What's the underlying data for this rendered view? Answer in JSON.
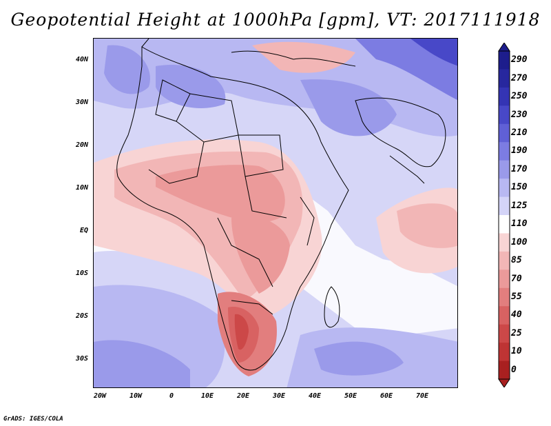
{
  "title": "Geopotential Height at 1000hPa [gpm], VT: 2017111918",
  "y_axis_labels": [
    "40N",
    "30N",
    "20N",
    "10N",
    "EQ",
    "10S",
    "20S",
    "30S"
  ],
  "x_axis_labels": [
    "20W",
    "10W",
    "0",
    "10E",
    "20E",
    "30E",
    "40E",
    "50E",
    "60E",
    "70E"
  ],
  "colorbar": {
    "labels": [
      "290",
      "270",
      "250",
      "230",
      "210",
      "190",
      "170",
      "150",
      "125",
      "110",
      "100",
      "85",
      "70",
      "55",
      "40",
      "25",
      "10",
      "0"
    ],
    "colors_top_to_bottom": [
      "#1d1d8c",
      "#27279e",
      "#3434b4",
      "#4848c8",
      "#6060d6",
      "#7c7ce2",
      "#9a9aea",
      "#b8b8f2",
      "#d4d4f8",
      "#ffffff",
      "#f8d4d4",
      "#f2b6b6",
      "#eb9a9a",
      "#e27e7e",
      "#d86262",
      "#cc4848",
      "#be3434",
      "#a82020"
    ]
  },
  "credit": "GrADS: IGES/COLA"
}
